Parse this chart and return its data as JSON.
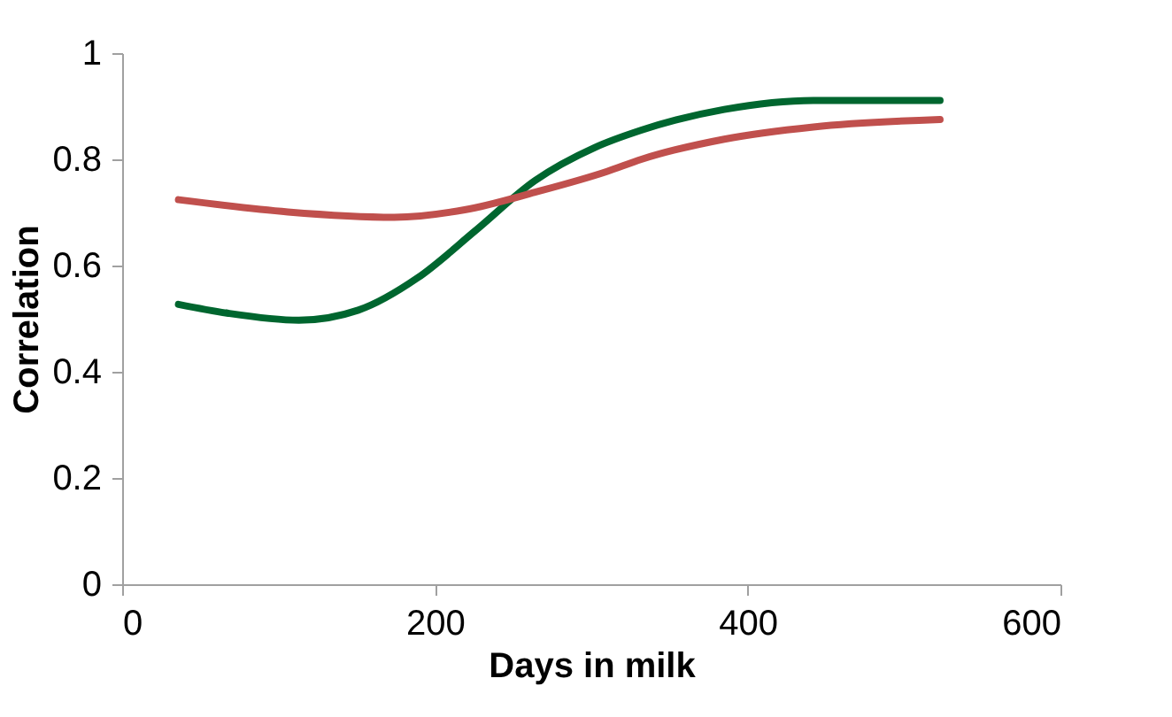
{
  "chart_data": {
    "type": "line",
    "xlabel": "Days in milk",
    "ylabel": "Correlation",
    "xlim": [
      0,
      600
    ],
    "xticks": [
      0,
      200,
      400,
      600
    ],
    "ylim": [
      0,
      1
    ],
    "yticks": [
      0,
      0.2,
      0.4,
      0.6,
      0.8,
      1
    ],
    "grid": false,
    "marker": "none",
    "line_style": "solid",
    "series": [
      {
        "color": "#00662f",
        "x": [
          36,
          68,
          113,
          151,
          189,
          226,
          264,
          302,
          332,
          385,
          442,
          523
        ],
        "values": [
          0.527,
          0.51,
          0.497,
          0.516,
          0.577,
          0.666,
          0.76,
          0.822,
          0.855,
          0.894,
          0.911,
          0.911
        ]
      },
      {
        "color": "#c0504d",
        "x": [
          36,
          106,
          174,
          219,
          264,
          310,
          332,
          385,
          442,
          523
        ],
        "values": [
          0.724,
          0.701,
          0.691,
          0.705,
          0.738,
          0.777,
          0.8,
          0.838,
          0.861,
          0.875
        ]
      }
    ]
  }
}
